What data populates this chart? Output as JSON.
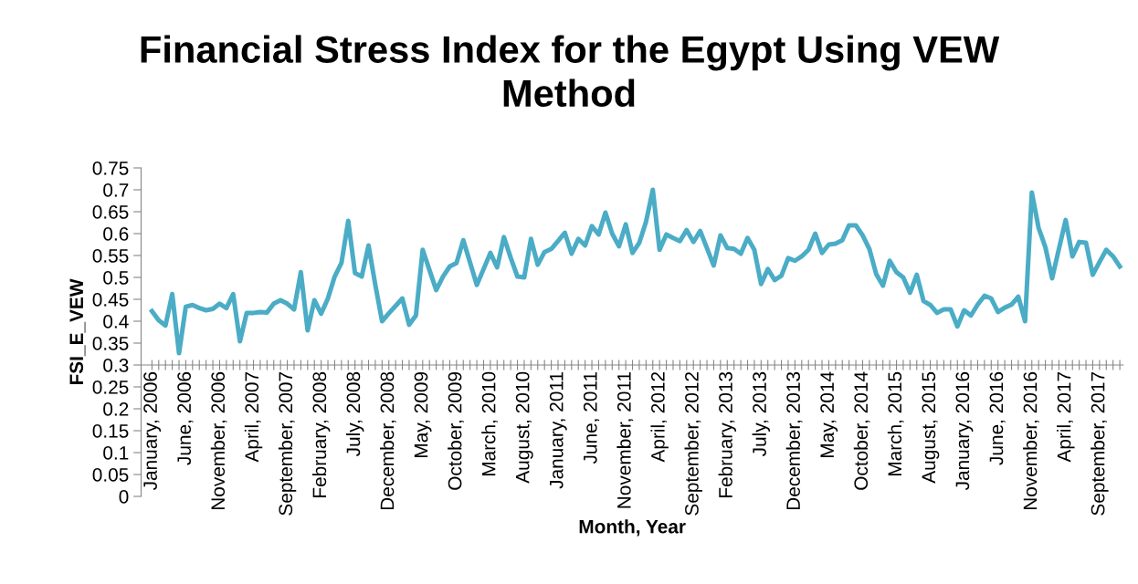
{
  "chart_data": {
    "type": "line",
    "title": "Financial Stress Index for the Egypt Using VEW\nMethod",
    "xlabel": "Month, Year",
    "ylabel": "FSI_E_VEW",
    "categories": [
      "January, 2006",
      null,
      null,
      null,
      null,
      "June, 2006",
      null,
      null,
      null,
      null,
      "November, 2006",
      null,
      null,
      null,
      null,
      "April, 2007",
      null,
      null,
      null,
      null,
      "September, 2007",
      null,
      null,
      null,
      null,
      "February, 2008",
      null,
      null,
      null,
      null,
      "July, 2008",
      null,
      null,
      null,
      null,
      "December, 2008",
      null,
      null,
      null,
      null,
      "May, 2009",
      null,
      null,
      null,
      null,
      "October, 2009",
      null,
      null,
      null,
      null,
      "March, 2010",
      null,
      null,
      null,
      null,
      "August, 2010",
      null,
      null,
      null,
      null,
      "January, 2011",
      null,
      null,
      null,
      null,
      "June, 2011",
      null,
      null,
      null,
      null,
      "November, 2011",
      null,
      null,
      null,
      null,
      "April, 2012",
      null,
      null,
      null,
      null,
      "September, 2012",
      null,
      null,
      null,
      null,
      "February, 2013",
      null,
      null,
      null,
      null,
      "July, 2013",
      null,
      null,
      null,
      null,
      "December, 2013",
      null,
      null,
      null,
      null,
      "May, 2014",
      null,
      null,
      null,
      null,
      "October, 2014",
      null,
      null,
      null,
      null,
      "March, 2015",
      null,
      null,
      null,
      null,
      "August, 2015",
      null,
      null,
      null,
      null,
      "January, 2016",
      null,
      null,
      null,
      null,
      "June, 2016",
      null,
      null,
      null,
      null,
      "November, 2016",
      null,
      null,
      null,
      null,
      "April, 2017",
      null,
      null,
      null,
      null,
      "September, 2017",
      null,
      null,
      null
    ],
    "series": [
      {
        "color": "#4bacc6",
        "values": [
          0.423,
          0.402,
          0.39,
          0.462,
          0.327,
          0.433,
          0.437,
          0.43,
          0.425,
          0.428,
          0.44,
          0.43,
          0.462,
          0.354,
          0.419,
          0.419,
          0.421,
          0.42,
          0.44,
          0.448,
          0.44,
          0.427,
          0.512,
          0.379,
          0.448,
          0.417,
          0.452,
          0.502,
          0.533,
          0.629,
          0.51,
          0.502,
          0.573,
          0.483,
          0.4,
          0.418,
          0.435,
          0.452,
          0.392,
          0.413,
          0.563,
          0.517,
          0.471,
          0.502,
          0.525,
          0.533,
          0.585,
          0.534,
          0.483,
          0.519,
          0.556,
          0.523,
          0.592,
          0.545,
          0.502,
          0.5,
          0.588,
          0.529,
          0.558,
          0.565,
          0.583,
          0.602,
          0.554,
          0.588,
          0.573,
          0.617,
          0.598,
          0.648,
          0.6,
          0.571,
          0.621,
          0.556,
          0.579,
          0.627,
          0.7,
          0.563,
          0.598,
          0.59,
          0.583,
          0.608,
          0.581,
          0.606,
          0.567,
          0.527,
          0.596,
          0.567,
          0.565,
          0.554,
          0.59,
          0.563,
          0.485,
          0.519,
          0.494,
          0.504,
          0.544,
          0.538,
          0.548,
          0.563,
          0.6,
          0.556,
          0.575,
          0.577,
          0.585,
          0.619,
          0.619,
          0.596,
          0.565,
          0.508,
          0.481,
          0.538,
          0.512,
          0.5,
          0.465,
          0.506,
          0.446,
          0.437,
          0.419,
          0.427,
          0.427,
          0.388,
          0.425,
          0.413,
          0.438,
          0.458,
          0.452,
          0.421,
          0.431,
          0.438,
          0.456,
          0.4,
          0.694,
          0.613,
          0.569,
          0.498,
          0.565,
          0.631,
          0.548,
          0.581,
          0.579,
          0.506,
          0.535,
          0.563,
          0.548,
          0.525
        ]
      }
    ],
    "ylim": [
      0,
      0.75
    ],
    "yticks": [
      0,
      0.05,
      0.1,
      0.15,
      0.2,
      0.25,
      0.3,
      0.35,
      0.4,
      0.45,
      0.5,
      0.55,
      0.6,
      0.65,
      0.7,
      0.75
    ],
    "grid": false,
    "legend": false,
    "marker": "none",
    "line_style": "solid"
  }
}
